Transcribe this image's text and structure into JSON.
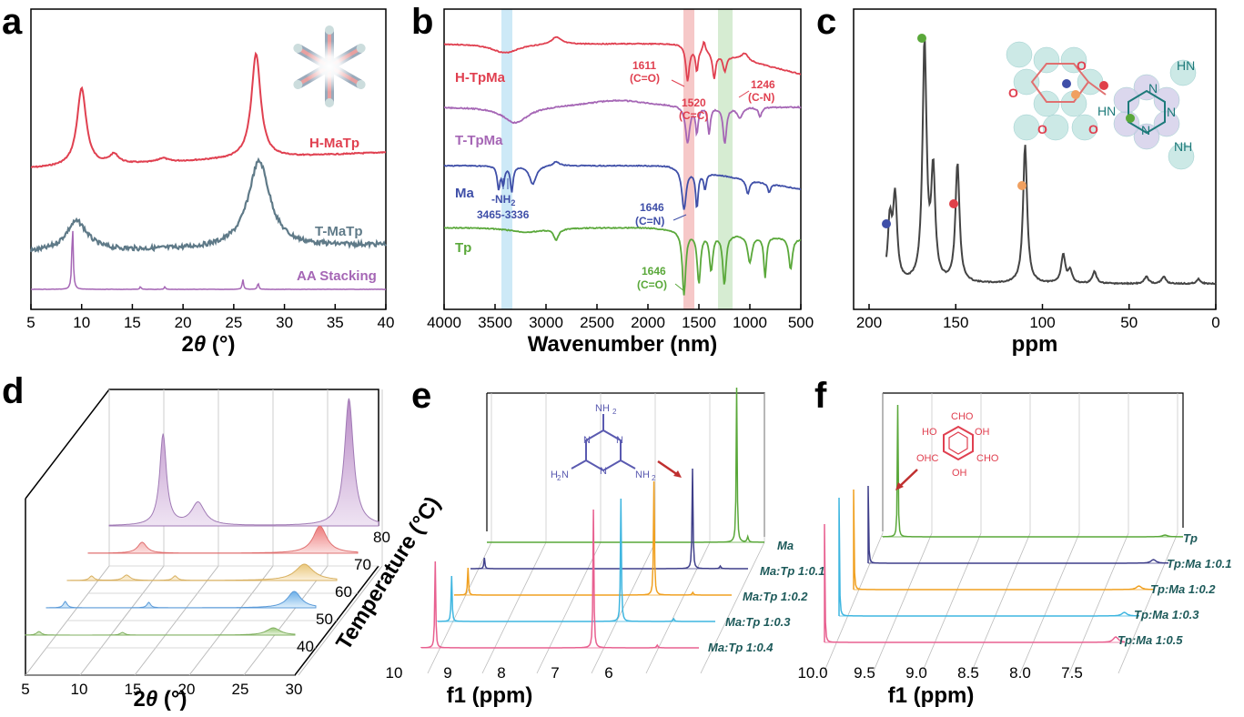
{
  "colors": {
    "red": "#e04050",
    "gray": "#5f7a88",
    "purple": "#a566b5",
    "blue": "#3f4fa8",
    "green": "#5aa83a",
    "black": "#333333",
    "teal": "#1d5a5a",
    "orange": "#f0a020",
    "cyan": "#3fb6e0",
    "pink": "#e86090"
  },
  "chart_data": [
    {
      "panel": "a",
      "type": "line",
      "xlabel_main": "2",
      "xlabel_var": "θ",
      "xlabel_unit": " (°)",
      "xlim": [
        5,
        40
      ],
      "xticks": [
        "5",
        "10",
        "15",
        "20",
        "25",
        "30",
        "35",
        "40"
      ],
      "series": [
        {
          "name": "H-MaTp",
          "peaks": [
            [
              10,
              1.0
            ],
            [
              13.2,
              0.12
            ],
            [
              18,
              0.05
            ],
            [
              27.2,
              1.35
            ]
          ]
        },
        {
          "name": "T-MaTp",
          "peaks": [
            [
              9.5,
              0.35
            ],
            [
              27.5,
              1.0
            ]
          ]
        },
        {
          "name": "AA Stacking",
          "peaks": [
            [
              9.1,
              1.0
            ],
            [
              15.8,
              0.04
            ],
            [
              18.2,
              0.04
            ],
            [
              25.9,
              0.15
            ],
            [
              27.4,
              0.1
            ]
          ]
        }
      ]
    },
    {
      "panel": "b",
      "type": "line",
      "xlabel": "Wavenumber (nm)",
      "xlim": [
        4000,
        500
      ],
      "xticks": [
        "4000",
        "3500",
        "3000",
        "2500",
        "2000",
        "1500",
        "1000",
        "500"
      ],
      "series": [
        {
          "name": "H-TpMa"
        },
        {
          "name": "T-TpMa"
        },
        {
          "name": "Ma"
        },
        {
          "name": "Tp"
        }
      ],
      "annotations": [
        "1611",
        "(C=O)",
        "1520",
        "(C=C)",
        "1246",
        "(C-N)",
        "-NH",
        "2",
        "3465-3336",
        "1646",
        "(C=N)",
        "1646",
        "(C=O)"
      ]
    },
    {
      "panel": "c",
      "type": "line",
      "xlabel": "ppm",
      "xlim": [
        200,
        0
      ],
      "xticks": [
        "200",
        "150",
        "100",
        "50",
        "0"
      ],
      "peaks": [
        [
          188,
          0.25
        ],
        [
          185,
          0.35
        ],
        [
          168,
          1.0
        ],
        [
          163,
          0.45
        ],
        [
          149,
          0.5
        ],
        [
          110,
          0.58
        ],
        [
          88,
          0.12
        ],
        [
          84,
          0.05
        ],
        [
          70,
          0.05
        ],
        [
          40,
          0.03
        ],
        [
          30,
          0.03
        ],
        [
          10,
          0.02
        ]
      ],
      "structure_labels": [
        "O",
        "O",
        "O",
        "O",
        "HN",
        "N",
        "N",
        "N",
        "HN",
        "NH"
      ]
    },
    {
      "panel": "d",
      "type": "line",
      "xlabel_main": "2",
      "xlabel_var": "θ",
      "xlabel_unit": " (°)",
      "ylabel": "Temperature (°C)",
      "xticks": [
        "5",
        "10",
        "15",
        "20",
        "25",
        "30"
      ],
      "temperatures": [
        "80",
        "70",
        "60",
        "50",
        "40"
      ]
    },
    {
      "panel": "e",
      "type": "line",
      "xlabel": "f1 (ppm)",
      "xticks": [
        "10",
        "9",
        "8",
        "7",
        "6"
      ],
      "series": [
        {
          "name": "Ma"
        },
        {
          "name": "Ma:Tp 1:0.1"
        },
        {
          "name": "Ma:Tp 1:0.2"
        },
        {
          "name": "Ma:Tp 1:0.3"
        },
        {
          "name": "Ma:Tp 1:0.4"
        }
      ],
      "structure_labels": [
        "NH",
        "2",
        "H",
        "2",
        "N",
        "NH",
        "2",
        "N",
        "N",
        "N"
      ]
    },
    {
      "panel": "f",
      "type": "line",
      "xlabel": "f1 (ppm)",
      "xticks": [
        "10.0",
        "9.5",
        "9.0",
        "8.5",
        "8.0",
        "7.5"
      ],
      "series": [
        {
          "name": "Tp"
        },
        {
          "name": "Tp:Ma 1:0.1"
        },
        {
          "name": "Tp:Ma 1:0.2"
        },
        {
          "name": "Tp:Ma 1:0.3"
        },
        {
          "name": "Tp:Ma 1:0.5"
        }
      ],
      "structure_labels": [
        "CHO",
        "HO",
        "OH",
        "OHC",
        "CHO",
        "OH"
      ]
    }
  ],
  "panels": {
    "a": "a",
    "b": "b",
    "c": "c",
    "d": "d",
    "e": "e",
    "f": "f"
  }
}
